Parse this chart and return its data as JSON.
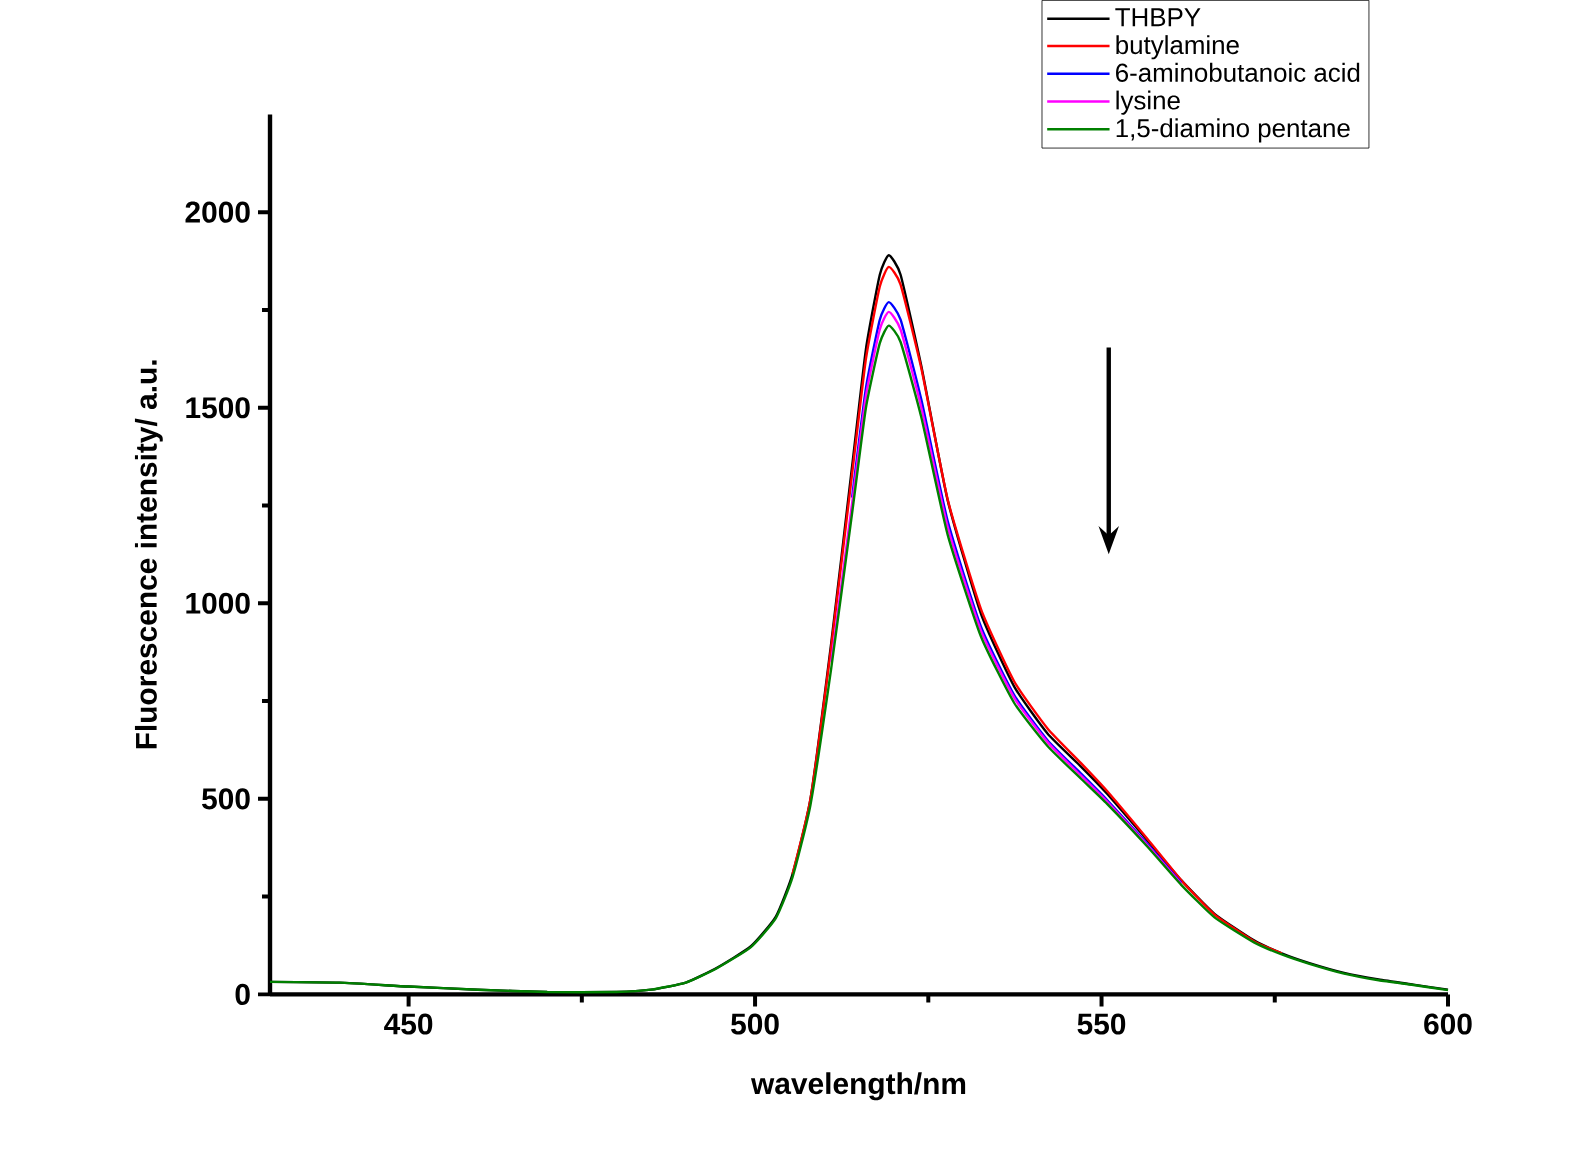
{
  "chart_data": {
    "type": "line",
    "xlabel": "wavelength/nm",
    "ylabel": "Fluorescence intensity/ a.u.",
    "xlim": [
      430,
      600
    ],
    "ylim": [
      0,
      2250
    ],
    "xticks": [
      450,
      500,
      550,
      600
    ],
    "yticks": [
      0,
      500,
      1000,
      1500,
      2000
    ],
    "legend": "top right",
    "line_style": "solid",
    "x": [
      430,
      440,
      450,
      460,
      470,
      480,
      485,
      490,
      494.5,
      499.4,
      503,
      505.4,
      508,
      511,
      514,
      516,
      518,
      519.3,
      521,
      524,
      527.8,
      532.6,
      537.4,
      542.2,
      547,
      550.8,
      556.6,
      561.5,
      566.3,
      572,
      576,
      580,
      585,
      590,
      595,
      600
    ],
    "series": [
      {
        "name": "THBPY",
        "color": "#000000",
        "values": [
          32,
          30,
          20,
          12,
          6,
          6,
          12,
          30,
          68,
          123,
          199,
          307,
          500,
          900,
          1350,
          1650,
          1840,
          1890,
          1840,
          1606,
          1263,
          973,
          787,
          667,
          583,
          513,
          394,
          292,
          206,
          138,
          105,
          80,
          55,
          38,
          25,
          12
        ]
      },
      {
        "name": "butylamine",
        "color": "#ff0000",
        "values": [
          null,
          null,
          null,
          null,
          null,
          null,
          null,
          null,
          null,
          null,
          null,
          307,
          500,
          890,
          1330,
          1625,
          1810,
          1860,
          1815,
          1600,
          1265,
          985,
          800,
          680,
          592,
          520,
          398,
          292,
          204,
          136,
          105,
          null,
          null,
          null,
          null,
          null
        ]
      },
      {
        "name": "6-aminobutanoic acid",
        "color": "#0000ff",
        "values": [
          null,
          null,
          null,
          null,
          null,
          null,
          null,
          null,
          null,
          null,
          null,
          null,
          null,
          null,
          1270,
          1550,
          1725,
          1770,
          1725,
          1520,
          1210,
          940,
          765,
          650,
          565,
          497,
          385,
          285,
          null,
          null,
          null,
          null,
          null,
          null,
          null,
          null
        ]
      },
      {
        "name": "lysine",
        "color": "#ff00ff",
        "values": [
          null,
          null,
          null,
          null,
          null,
          null,
          null,
          null,
          null,
          null,
          null,
          null,
          null,
          850,
          1255,
          1530,
          1700,
          1745,
          1700,
          1500,
          1195,
          930,
          758,
          645,
          560,
          493,
          382,
          283,
          null,
          null,
          null,
          null,
          null,
          null,
          null,
          null
        ]
      },
      {
        "name": "1,5-diamino pentane",
        "color": "#008000",
        "values": [
          32,
          30,
          20,
          12,
          6,
          6,
          12,
          30,
          67,
          121,
          195,
          299,
          485,
          835,
          1230,
          1500,
          1665,
          1710,
          1668,
          1475,
          1175,
          915,
          745,
          635,
          552,
          487,
          378,
          280,
          197,
          133,
          102,
          78,
          53,
          36,
          24,
          11
        ]
      }
    ]
  }
}
